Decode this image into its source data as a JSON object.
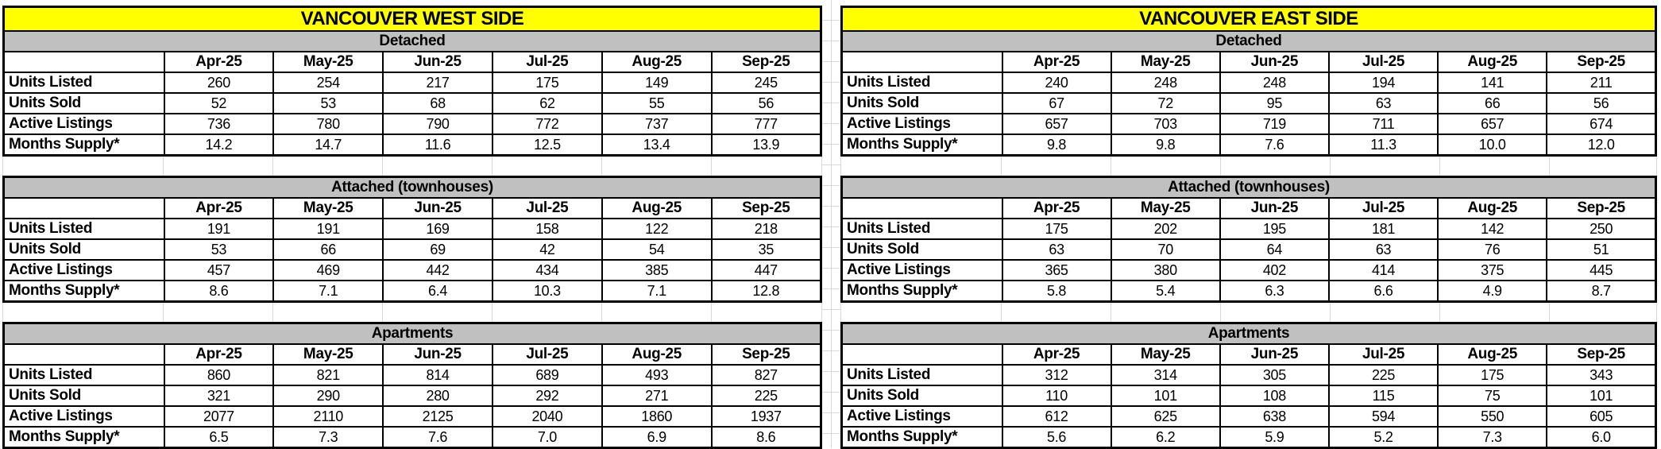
{
  "colors": {
    "title_bg": "#ffff00",
    "section_bg": "#c0c0c0",
    "border": "#000000",
    "gridline": "#d9d9d9"
  },
  "months": [
    "Apr-25",
    "May-25",
    "Jun-25",
    "Jul-25",
    "Aug-25",
    "Sep-25"
  ],
  "tables": [
    {
      "title": "VANCOUVER WEST SIDE",
      "sections": [
        {
          "name": "Detached",
          "rows": [
            {
              "label": "Units Listed",
              "values": [
                "260",
                "254",
                "217",
                "175",
                "149",
                "245"
              ]
            },
            {
              "label": "Units Sold",
              "values": [
                "52",
                "53",
                "68",
                "62",
                "55",
                "56"
              ]
            },
            {
              "label": "Active Listings",
              "values": [
                "736",
                "780",
                "790",
                "772",
                "737",
                "777"
              ]
            },
            {
              "label": "Months Supply*",
              "values": [
                "14.2",
                "14.7",
                "11.6",
                "12.5",
                "13.4",
                "13.9"
              ]
            }
          ]
        },
        {
          "name": "Attached (townhouses)",
          "rows": [
            {
              "label": "Units Listed",
              "values": [
                "191",
                "191",
                "169",
                "158",
                "122",
                "218"
              ]
            },
            {
              "label": "Units Sold",
              "values": [
                "53",
                "66",
                "69",
                "42",
                "54",
                "35"
              ]
            },
            {
              "label": "Active Listings",
              "values": [
                "457",
                "469",
                "442",
                "434",
                "385",
                "447"
              ]
            },
            {
              "label": "Months Supply*",
              "values": [
                "8.6",
                "7.1",
                "6.4",
                "10.3",
                "7.1",
                "12.8"
              ]
            }
          ]
        },
        {
          "name": "Apartments",
          "rows": [
            {
              "label": "Units Listed",
              "values": [
                "860",
                "821",
                "814",
                "689",
                "493",
                "827"
              ]
            },
            {
              "label": "Units Sold",
              "values": [
                "321",
                "290",
                "280",
                "292",
                "271",
                "225"
              ]
            },
            {
              "label": "Active Listings",
              "values": [
                "2077",
                "2110",
                "2125",
                "2040",
                "1860",
                "1937"
              ]
            },
            {
              "label": "Months Supply*",
              "values": [
                "6.5",
                "7.3",
                "7.6",
                "7.0",
                "6.9",
                "8.6"
              ]
            }
          ]
        }
      ]
    },
    {
      "title": "VANCOUVER EAST SIDE",
      "sections": [
        {
          "name": "Detached",
          "rows": [
            {
              "label": "Units Listed",
              "values": [
                "240",
                "248",
                "248",
                "194",
                "141",
                "211"
              ]
            },
            {
              "label": "Units Sold",
              "values": [
                "67",
                "72",
                "95",
                "63",
                "66",
                "56"
              ]
            },
            {
              "label": "Active Listings",
              "values": [
                "657",
                "703",
                "719",
                "711",
                "657",
                "674"
              ]
            },
            {
              "label": "Months Supply*",
              "values": [
                "9.8",
                "9.8",
                "7.6",
                "11.3",
                "10.0",
                "12.0"
              ]
            }
          ]
        },
        {
          "name": "Attached (townhouses)",
          "rows": [
            {
              "label": "Units Listed",
              "values": [
                "175",
                "202",
                "195",
                "181",
                "142",
                "250"
              ]
            },
            {
              "label": "Units Sold",
              "values": [
                "63",
                "70",
                "64",
                "63",
                "76",
                "51"
              ]
            },
            {
              "label": "Active Listings",
              "values": [
                "365",
                "380",
                "402",
                "414",
                "375",
                "445"
              ]
            },
            {
              "label": "Months Supply*",
              "values": [
                "5.8",
                "5.4",
                "6.3",
                "6.6",
                "4.9",
                "8.7"
              ]
            }
          ]
        },
        {
          "name": "Apartments",
          "rows": [
            {
              "label": "Units Listed",
              "values": [
                "312",
                "314",
                "305",
                "225",
                "175",
                "343"
              ]
            },
            {
              "label": "Units Sold",
              "values": [
                "110",
                "101",
                "108",
                "115",
                "75",
                "101"
              ]
            },
            {
              "label": "Active Listings",
              "values": [
                "612",
                "625",
                "638",
                "594",
                "550",
                "605"
              ]
            },
            {
              "label": "Months Supply*",
              "values": [
                "5.6",
                "6.2",
                "5.9",
                "5.2",
                "7.3",
                "6.0"
              ]
            }
          ]
        }
      ]
    }
  ]
}
